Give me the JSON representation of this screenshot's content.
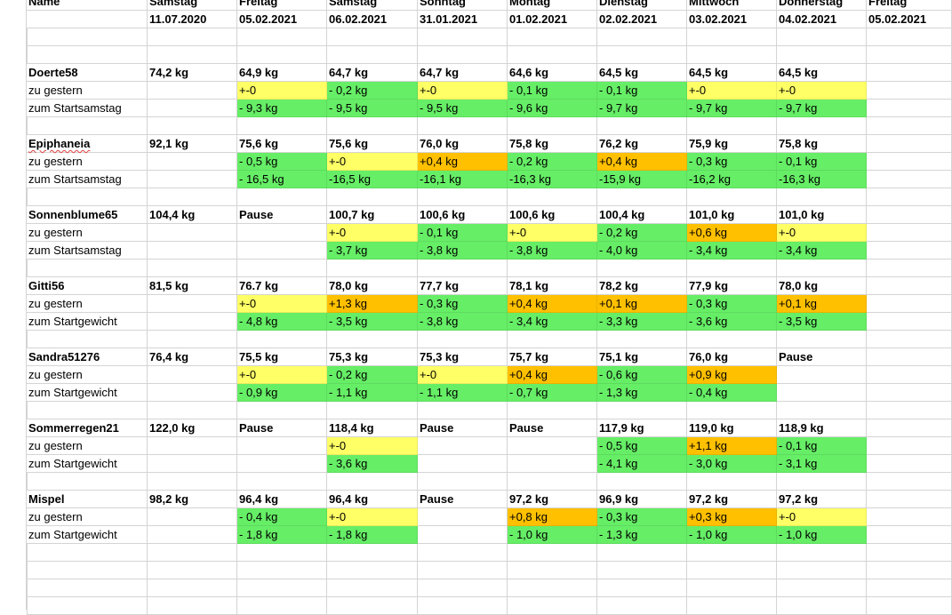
{
  "header": {
    "name_label": "Name",
    "columns": [
      {
        "day": "Samstag",
        "date": "11.07.2020"
      },
      {
        "day": "Freitag",
        "date": "05.02.2021"
      },
      {
        "day": "Samstag",
        "date": "06.02.2021"
      },
      {
        "day": "Sonntag",
        "date": "31.01.2021"
      },
      {
        "day": "Montag",
        "date": "01.02.2021"
      },
      {
        "day": "Dienstag",
        "date": "02.02.2021"
      },
      {
        "day": "Mittwoch",
        "date": "03.02.2021"
      },
      {
        "day": "Donnerstag",
        "date": "04.02.2021"
      },
      {
        "day": "Freitag",
        "date": "05.02.2021"
      }
    ]
  },
  "colors": {
    "green": "#66ee66",
    "yellow": "#ffff66",
    "orange": "#ffc000",
    "grid": "#d4d4d4"
  },
  "blocks": [
    {
      "name": "Doerte58",
      "spell": false,
      "weights": [
        "74,2 kg",
        "64,9 kg",
        "64,7 kg",
        "64,7 kg",
        "64,6 kg",
        "64,5 kg",
        "64,5 kg",
        "64,5 kg",
        ""
      ],
      "rows": [
        {
          "label": "zu gestern",
          "cells": [
            [
              "",
              ""
            ],
            [
              "+-0",
              "y"
            ],
            [
              "- 0,2 kg",
              "g"
            ],
            [
              "+-0",
              "y"
            ],
            [
              "- 0,1 kg",
              "g"
            ],
            [
              "- 0,1 kg",
              "g"
            ],
            [
              "+-0",
              "y"
            ],
            [
              "+-0",
              "y"
            ],
            [
              "",
              ""
            ]
          ]
        },
        {
          "label": "zum Startsamstag",
          "cells": [
            [
              "",
              ""
            ],
            [
              "- 9,3 kg",
              "g"
            ],
            [
              "- 9,5 kg",
              "g"
            ],
            [
              "- 9,5 kg",
              "g"
            ],
            [
              "- 9,6 kg",
              "g"
            ],
            [
              "- 9,7 kg",
              "g"
            ],
            [
              "- 9,7 kg",
              "g"
            ],
            [
              "- 9,7 kg",
              "g"
            ],
            [
              "",
              ""
            ]
          ]
        }
      ]
    },
    {
      "name": "Epiphaneia",
      "spell": true,
      "weights": [
        "92,1 kg",
        "75,6 kg",
        "75,6 kg",
        "76,0 kg",
        "75,8 kg",
        "76,2 kg",
        "75,9 kg",
        "75,8 kg",
        ""
      ],
      "rows": [
        {
          "label": "zu gestern",
          "cells": [
            [
              "",
              ""
            ],
            [
              "- 0,5 kg",
              "g"
            ],
            [
              "+-0",
              "y"
            ],
            [
              "+0,4 kg",
              "o"
            ],
            [
              "- 0,2 kg",
              "g"
            ],
            [
              "+0,4 kg",
              "o"
            ],
            [
              "- 0,3 kg",
              "g"
            ],
            [
              "- 0,1 kg",
              "g"
            ],
            [
              "",
              ""
            ]
          ]
        },
        {
          "label": "zum Startsamstag",
          "cells": [
            [
              "",
              ""
            ],
            [
              "- 16,5 kg",
              "g"
            ],
            [
              "-16,5 kg",
              "g"
            ],
            [
              "-16,1 kg",
              "g"
            ],
            [
              "-16,3 kg",
              "g"
            ],
            [
              "-15,9 kg",
              "g"
            ],
            [
              "-16,2 kg",
              "g"
            ],
            [
              "-16,3 kg",
              "g"
            ],
            [
              "",
              ""
            ]
          ]
        }
      ]
    },
    {
      "name": "Sonnenblume65",
      "spell": false,
      "weights": [
        "104,4 kg",
        "Pause",
        "100,7 kg",
        "100,6 kg",
        "100,6 kg",
        "100,4 kg",
        "101,0 kg",
        "101,0 kg",
        ""
      ],
      "rows": [
        {
          "label": "zu gestern",
          "cells": [
            [
              "",
              ""
            ],
            [
              "",
              ""
            ],
            [
              "+-0",
              "y"
            ],
            [
              "- 0,1 kg",
              "g"
            ],
            [
              "+-0",
              "y"
            ],
            [
              "- 0,2 kg",
              "g"
            ],
            [
              "+0,6 kg",
              "o"
            ],
            [
              "+-0",
              "y"
            ],
            [
              "",
              ""
            ]
          ]
        },
        {
          "label": "zum Startsamstag",
          "cells": [
            [
              "",
              ""
            ],
            [
              "",
              ""
            ],
            [
              "- 3,7 kg",
              "g"
            ],
            [
              "- 3,8 kg",
              "g"
            ],
            [
              "- 3,8 kg",
              "g"
            ],
            [
              "- 4,0 kg",
              "g"
            ],
            [
              "- 3,4 kg",
              "g"
            ],
            [
              "- 3,4 kg",
              "g"
            ],
            [
              "",
              ""
            ]
          ]
        }
      ]
    },
    {
      "name": "Gitti56",
      "spell": false,
      "weights": [
        "81,5 kg",
        "76.7 kg",
        "78,0 kg",
        "77,7 kg",
        "78,1 kg",
        "78,2 kg",
        "77,9 kg",
        "78,0 kg",
        ""
      ],
      "rows": [
        {
          "label": "zu gestern",
          "cells": [
            [
              "",
              ""
            ],
            [
              "+-0",
              "y"
            ],
            [
              "+1,3 kg",
              "o"
            ],
            [
              "- 0,3 kg",
              "g"
            ],
            [
              "+0,4 kg",
              "o"
            ],
            [
              "+0,1 kg",
              "o"
            ],
            [
              "- 0,3 kg",
              "g"
            ],
            [
              "+0,1 kg",
              "o"
            ],
            [
              "",
              ""
            ]
          ]
        },
        {
          "label": "zum Startgewicht",
          "cells": [
            [
              "",
              ""
            ],
            [
              "- 4,8 kg",
              "g"
            ],
            [
              "- 3,5 kg",
              "g"
            ],
            [
              "- 3,8 kg",
              "g"
            ],
            [
              "- 3,4 kg",
              "g"
            ],
            [
              "- 3,3 kg",
              "g"
            ],
            [
              "- 3,6 kg",
              "g"
            ],
            [
              "- 3,5 kg",
              "g"
            ],
            [
              "",
              ""
            ]
          ]
        }
      ]
    },
    {
      "name": "Sandra51276",
      "spell": false,
      "weights": [
        "76,4 kg",
        "75,5 kg",
        "75,3 kg",
        "75,3 kg",
        "75,7 kg",
        "75,1 kg",
        "76,0 kg",
        "Pause",
        ""
      ],
      "rows": [
        {
          "label": "zu gestern",
          "cells": [
            [
              "",
              ""
            ],
            [
              "+-0",
              "y"
            ],
            [
              "- 0,2 kg",
              "g"
            ],
            [
              "+-0",
              "y"
            ],
            [
              "+0,4 kg",
              "o"
            ],
            [
              "- 0,6 kg",
              "g"
            ],
            [
              "+0,9 kg",
              "o"
            ],
            [
              "",
              ""
            ],
            [
              "",
              ""
            ]
          ]
        },
        {
          "label": "zum Startgewicht",
          "cells": [
            [
              "",
              ""
            ],
            [
              "- 0,9 kg",
              "g"
            ],
            [
              "- 1,1 kg",
              "g"
            ],
            [
              "- 1,1 kg",
              "g"
            ],
            [
              "- 0,7 kg",
              "g"
            ],
            [
              "- 1,3 kg",
              "g"
            ],
            [
              "- 0,4 kg",
              "g"
            ],
            [
              "",
              ""
            ],
            [
              "",
              ""
            ]
          ]
        }
      ]
    },
    {
      "name": "Sommerregen21",
      "spell": false,
      "weights": [
        "122,0 kg",
        "Pause",
        "118,4 kg",
        "Pause",
        "Pause",
        "117,9 kg",
        "119,0 kg",
        "118,9 kg",
        ""
      ],
      "rows": [
        {
          "label": "zu gestern",
          "cells": [
            [
              "",
              ""
            ],
            [
              "",
              ""
            ],
            [
              "+-0",
              "y"
            ],
            [
              "",
              ""
            ],
            [
              "",
              ""
            ],
            [
              "- 0,5 kg",
              "g"
            ],
            [
              "+1,1 kg",
              "o"
            ],
            [
              "- 0,1 kg",
              "g"
            ],
            [
              "",
              ""
            ]
          ]
        },
        {
          "label": "zum Startgewicht",
          "cells": [
            [
              "",
              ""
            ],
            [
              "",
              ""
            ],
            [
              "- 3,6 kg",
              "g"
            ],
            [
              "",
              ""
            ],
            [
              "",
              ""
            ],
            [
              "- 4,1 kg",
              "g"
            ],
            [
              "- 3,0 kg",
              "g"
            ],
            [
              "- 3,1 kg",
              "g"
            ],
            [
              "",
              ""
            ]
          ]
        }
      ]
    },
    {
      "name": "Mispel",
      "spell": false,
      "weights": [
        "98,2 kg",
        "96,4 kg",
        "96,4 kg",
        "Pause",
        "97,2 kg",
        "96,9 kg",
        "97,2 kg",
        "97,2 kg",
        ""
      ],
      "rows": [
        {
          "label": "zu gestern",
          "cells": [
            [
              "",
              ""
            ],
            [
              "- 0,4 kg",
              "g"
            ],
            [
              "+-0",
              "y"
            ],
            [
              "",
              ""
            ],
            [
              "+0,8 kg",
              "o"
            ],
            [
              "- 0,3 kg",
              "g"
            ],
            [
              "+0,3 kg",
              "o"
            ],
            [
              "+-0",
              "y"
            ],
            [
              "",
              ""
            ]
          ]
        },
        {
          "label": "zum Startgewicht",
          "cells": [
            [
              "",
              ""
            ],
            [
              "- 1,8 kg",
              "g"
            ],
            [
              "- 1,8 kg",
              "g"
            ],
            [
              "",
              ""
            ],
            [
              "- 1,0 kg",
              "g"
            ],
            [
              "- 1,3 kg",
              "g"
            ],
            [
              "- 1,0 kg",
              "g"
            ],
            [
              "- 1,0 kg",
              "g"
            ],
            [
              "",
              ""
            ]
          ]
        }
      ]
    }
  ]
}
